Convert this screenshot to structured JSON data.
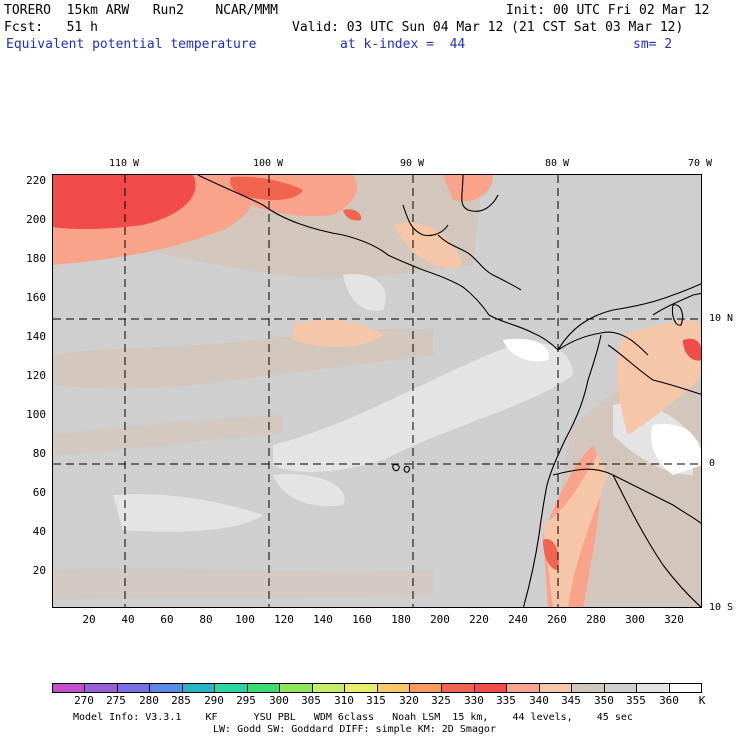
{
  "header": {
    "line1_left": "TORERO  15km ARW   Run2    NCAR/MMM",
    "line1_right": "Init: 00 UTC Fri 02 Mar 12",
    "line2_left": "Fcst:   51 h",
    "line2_right": "Valid: 03 UTC Sun 04 Mar 12 (21 CST Sat 03 Mar 12)",
    "line3_field": "Equivalent potential temperature",
    "line3_level": "at k-index =  44",
    "line3_smooth": "sm= 2"
  },
  "map": {
    "y_ticks": [
      "220",
      "200",
      "180",
      "160",
      "140",
      "120",
      "100",
      "80",
      "60",
      "40",
      "20"
    ],
    "x_ticks": [
      "20",
      "40",
      "60",
      "80",
      "100",
      "120",
      "140",
      "160",
      "180",
      "200",
      "220",
      "240",
      "260",
      "280",
      "300",
      "320"
    ],
    "lon_labels": [
      "110 W",
      "100 W",
      "90 W",
      "80 W",
      "70 W"
    ],
    "lat_labels": [
      "10 N",
      "0",
      "10 S"
    ]
  },
  "colorbar": {
    "labels": [
      "270",
      "275",
      "280",
      "285",
      "290",
      "295",
      "300",
      "305",
      "310",
      "315",
      "320",
      "325",
      "330",
      "335",
      "340",
      "345",
      "350",
      "355",
      "360"
    ],
    "unit": "K",
    "colors": [
      "#c34fd0",
      "#9b60d8",
      "#7a70e2",
      "#5a8ae8",
      "#27b7c2",
      "#28d6a4",
      "#3cdc6f",
      "#8fe65a",
      "#c8ee63",
      "#e9ee6a",
      "#f4c96b",
      "#f59b5e",
      "#f06450",
      "#f24c4a",
      "#f9a48a",
      "#f6c6a8",
      "#cfc6be",
      "#cfcfcf",
      "#e4e4e4",
      "#ffffff"
    ]
  },
  "footer": {
    "line1": "Model Info: V3.3.1    KF      YSU PBL   WDM 6class   Noah LSM  15 km,    44 levels,    45 sec",
    "line2": "LW: Godd SW: Goddard DIFF: simple KM: 2D Smagor"
  }
}
